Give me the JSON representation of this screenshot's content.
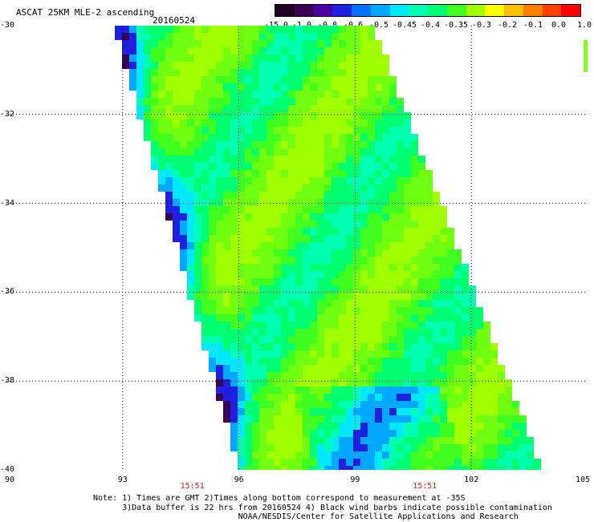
{
  "header": {
    "title": "ASCAT 25KM MLE-2 ascending",
    "date": "20160524"
  },
  "colorbar": {
    "labels": [
      "-15.0",
      "-1.0",
      "-0.8",
      "-0.6",
      "-0.5",
      "-0.45",
      "-0.4",
      "-0.35",
      "-0.3",
      "-0.2",
      "-0.1",
      "0.0",
      "1.0"
    ],
    "colors": [
      "#200020",
      "#3a0055",
      "#4a00a0",
      "#2020e0",
      "#0070ff",
      "#00a8ff",
      "#00e8ff",
      "#00ffb0",
      "#00ff70",
      "#40ff20",
      "#a0ff00",
      "#ffff00",
      "#ffc000",
      "#ff8000",
      "#ff4000",
      "#ff0000"
    ]
  },
  "map": {
    "lat_labels": [
      "-30",
      "-32",
      "-34",
      "-36",
      "-38",
      "-40"
    ],
    "lon_labels": [
      "90",
      "93",
      "96",
      "99",
      "102",
      "105"
    ],
    "lat_range": [
      -40,
      -30
    ],
    "lon_range": [
      90,
      105
    ],
    "gridlines": true,
    "swath_times": [
      "15:51",
      "15:51"
    ]
  },
  "notes": {
    "line1": "Note: 1) Times are GMT 2)Times along bottom correspond to measurement at -35S",
    "line2": "      3)Data buffer is 22 hrs from 20160524 4) Black wind barbs indicate possible contamination",
    "line3": "                              NOAA/NESDIS/Center for Satellite Applications and Research"
  }
}
